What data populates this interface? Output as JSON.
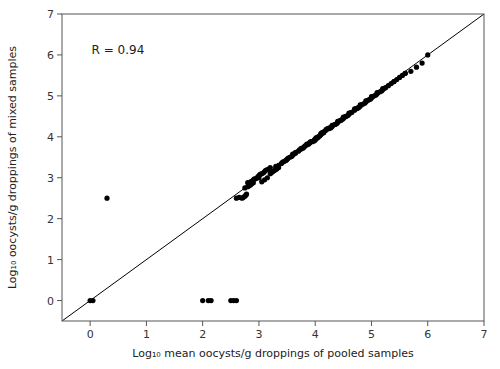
{
  "chart_data": {
    "type": "scatter",
    "xlabel": "Log₁₀ mean oocysts/g droppings of pooled samples",
    "ylabel": "Log₁₀ oocysts/g droppings of mixed samples",
    "annotation": "R = 0.94",
    "xlim": [
      -0.5,
      7
    ],
    "ylim": [
      -0.5,
      7
    ],
    "xticks": [
      0,
      1,
      2,
      3,
      4,
      5,
      6,
      7
    ],
    "yticks": [
      0,
      1,
      2,
      3,
      4,
      5,
      6,
      7
    ],
    "grid": false,
    "series": [
      {
        "type": "scatter",
        "color": "#000000",
        "marker": "circle",
        "x": [
          0.0,
          0.05,
          0.3,
          2.0,
          2.1,
          2.15,
          2.5,
          2.55,
          2.6,
          2.6,
          2.65,
          2.7,
          2.72,
          2.75,
          2.77,
          2.78,
          2.75,
          2.8,
          2.82,
          2.85,
          2.87,
          2.88,
          2.9,
          2.8,
          2.85,
          2.88,
          2.9,
          2.92,
          2.95,
          2.97,
          2.98,
          3.0,
          3.0,
          3.02,
          3.05,
          3.08,
          3.1,
          3.12,
          3.15,
          3.18,
          3.2,
          3.05,
          3.1,
          3.15,
          3.2,
          3.22,
          3.25,
          3.28,
          3.3,
          3.32,
          3.35,
          3.3,
          3.35,
          3.4,
          3.42,
          3.45,
          3.48,
          3.5,
          3.5,
          3.52,
          3.55,
          3.58,
          3.6,
          3.62,
          3.65,
          3.6,
          3.65,
          3.7,
          3.72,
          3.75,
          3.78,
          3.8,
          3.75,
          3.8,
          3.82,
          3.85,
          3.88,
          3.9,
          3.92,
          3.85,
          3.9,
          3.95,
          3.98,
          4.0,
          4.02,
          4.05,
          4.0,
          4.02,
          4.05,
          4.08,
          4.1,
          4.12,
          4.15,
          4.1,
          4.12,
          4.15,
          4.18,
          4.2,
          4.22,
          4.25,
          4.2,
          4.25,
          4.28,
          4.3,
          4.32,
          4.35,
          4.3,
          4.35,
          4.38,
          4.4,
          4.42,
          4.45,
          4.4,
          4.45,
          4.48,
          4.5,
          4.52,
          4.55,
          4.5,
          4.55,
          4.58,
          4.6,
          4.62,
          4.65,
          4.6,
          4.65,
          4.7,
          4.72,
          4.75,
          4.7,
          4.75,
          4.78,
          4.8,
          4.82,
          4.8,
          4.85,
          4.88,
          4.9,
          4.92,
          4.9,
          4.95,
          4.98,
          5.0,
          5.02,
          5.0,
          5.05,
          5.08,
          5.1,
          5.12,
          5.1,
          5.15,
          5.18,
          5.2,
          5.22,
          5.2,
          5.25,
          5.3,
          5.35,
          5.4,
          5.4,
          5.45,
          5.5,
          5.55,
          5.6,
          5.6,
          5.7,
          5.8,
          5.9,
          6.0
        ],
        "values": [
          0.0,
          0.0,
          2.5,
          0.0,
          0.0,
          0.0,
          0.0,
          0.0,
          0.0,
          2.5,
          2.52,
          2.5,
          2.52,
          2.55,
          2.58,
          2.6,
          2.75,
          2.78,
          2.8,
          2.82,
          2.85,
          2.87,
          2.88,
          2.88,
          2.9,
          2.92,
          2.95,
          2.97,
          2.98,
          3.0,
          3.02,
          3.0,
          3.05,
          3.08,
          3.1,
          3.12,
          3.15,
          3.18,
          3.2,
          3.22,
          3.25,
          2.9,
          2.95,
          3.0,
          3.1,
          3.12,
          3.15,
          3.18,
          3.2,
          3.22,
          3.25,
          3.28,
          3.3,
          3.35,
          3.38,
          3.4,
          3.42,
          3.45,
          3.45,
          3.48,
          3.5,
          3.52,
          3.55,
          3.58,
          3.6,
          3.58,
          3.62,
          3.65,
          3.68,
          3.7,
          3.72,
          3.75,
          3.72,
          3.75,
          3.78,
          3.8,
          3.82,
          3.85,
          3.88,
          3.82,
          3.85,
          3.88,
          3.9,
          3.92,
          3.95,
          3.98,
          3.95,
          3.98,
          4.0,
          4.02,
          4.05,
          4.08,
          4.1,
          4.08,
          4.1,
          4.12,
          4.15,
          4.18,
          4.2,
          4.22,
          4.18,
          4.2,
          4.22,
          4.25,
          4.28,
          4.3,
          4.28,
          4.3,
          4.32,
          4.35,
          4.38,
          4.4,
          4.38,
          4.4,
          4.42,
          4.45,
          4.48,
          4.5,
          4.48,
          4.5,
          4.52,
          4.55,
          4.58,
          4.6,
          4.58,
          4.6,
          4.65,
          4.68,
          4.7,
          4.68,
          4.7,
          4.72,
          4.75,
          4.78,
          4.78,
          4.8,
          4.82,
          4.85,
          4.88,
          4.88,
          4.9,
          4.92,
          4.95,
          4.98,
          4.98,
          5.0,
          5.02,
          5.05,
          5.08,
          5.08,
          5.1,
          5.12,
          5.15,
          5.18,
          5.18,
          5.2,
          5.25,
          5.3,
          5.35,
          5.35,
          5.4,
          5.45,
          5.5,
          5.55,
          5.55,
          5.6,
          5.7,
          5.8,
          6.0
        ]
      },
      {
        "type": "line",
        "color": "#000000",
        "line_style": "solid",
        "x": [
          -0.5,
          7
        ],
        "values": [
          -0.5,
          7
        ]
      }
    ]
  }
}
